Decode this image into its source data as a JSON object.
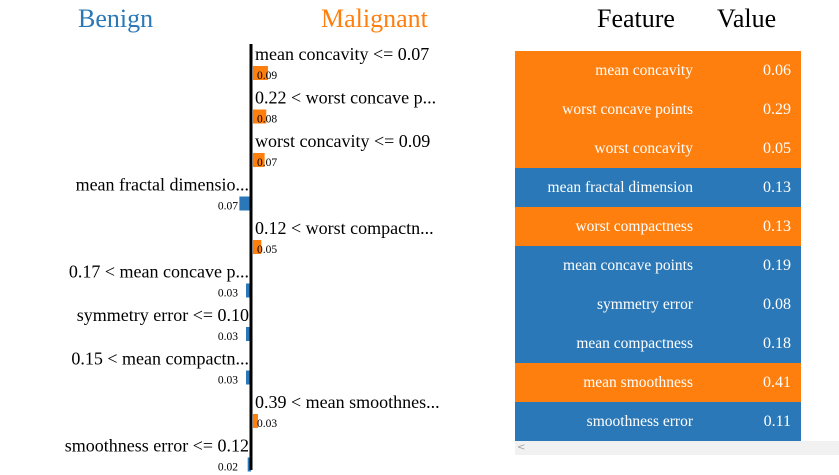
{
  "headers": {
    "benign": "Benign",
    "malignant": "Malignant",
    "feature": "Feature",
    "value": "Value"
  },
  "colors": {
    "benign": "#2a78b7",
    "malignant": "#ff7f0e"
  },
  "chart_data": {
    "type": "bar",
    "orientation": "horizontal",
    "title": "",
    "classes": [
      "Benign",
      "Malignant"
    ],
    "bars": [
      {
        "label": "mean concavity <= 0.07",
        "value": 0.09,
        "class": "Malignant"
      },
      {
        "label": "0.22 < worst concave p...",
        "value": 0.08,
        "class": "Malignant"
      },
      {
        "label": "worst concavity <= 0.09",
        "value": 0.07,
        "class": "Malignant"
      },
      {
        "label": "mean fractal dimensio...",
        "value": 0.07,
        "class": "Benign"
      },
      {
        "label": "0.12 < worst compactn...",
        "value": 0.05,
        "class": "Malignant"
      },
      {
        "label": "0.17 < mean concave p...",
        "value": 0.03,
        "class": "Benign"
      },
      {
        "label": "symmetry error <= 0.10",
        "value": 0.03,
        "class": "Benign"
      },
      {
        "label": "0.15 < mean compactn...",
        "value": 0.03,
        "class": "Benign"
      },
      {
        "label": "0.39 < mean smoothnes...",
        "value": 0.03,
        "class": "Malignant"
      },
      {
        "label": "smoothness error <= 0.12",
        "value": 0.02,
        "class": "Benign"
      }
    ]
  },
  "table": {
    "rows": [
      {
        "feature": "mean concavity",
        "value": "0.06",
        "class": "Malignant"
      },
      {
        "feature": "worst concave points",
        "value": "0.29",
        "class": "Malignant"
      },
      {
        "feature": "worst concavity",
        "value": "0.05",
        "class": "Malignant"
      },
      {
        "feature": "mean fractal dimension",
        "value": "0.13",
        "class": "Benign"
      },
      {
        "feature": "worst compactness",
        "value": "0.13",
        "class": "Malignant"
      },
      {
        "feature": "mean concave points",
        "value": "0.19",
        "class": "Benign"
      },
      {
        "feature": "symmetry error",
        "value": "0.08",
        "class": "Benign"
      },
      {
        "feature": "mean compactness",
        "value": "0.18",
        "class": "Benign"
      },
      {
        "feature": "mean smoothness",
        "value": "0.41",
        "class": "Malignant"
      },
      {
        "feature": "smoothness error",
        "value": "0.11",
        "class": "Benign"
      }
    ]
  },
  "scrollbar": {
    "left_arrow": "<"
  }
}
